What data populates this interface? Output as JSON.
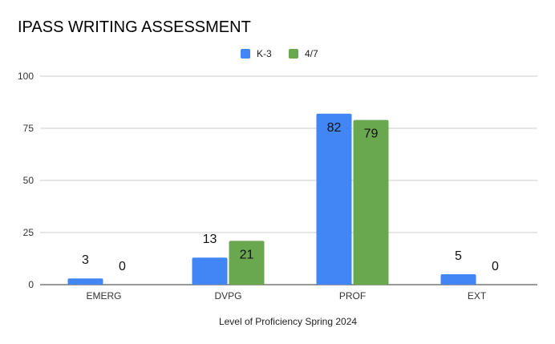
{
  "chart_data": {
    "type": "bar",
    "title": "IPASS WRITING ASSESSMENT",
    "xlabel": "Level of Proficiency Spring 2024",
    "ylabel": "",
    "ylim": [
      0,
      100
    ],
    "yticks": [
      0,
      25,
      50,
      75,
      100
    ],
    "categories": [
      "EMERG",
      "DVPG",
      "PROF",
      "EXT"
    ],
    "series": [
      {
        "name": "K-3",
        "color": "#4285f4",
        "values": [
          3,
          13,
          82,
          5
        ]
      },
      {
        "name": "4/7",
        "color": "#6aa84f",
        "values": [
          0,
          21,
          79,
          0
        ]
      }
    ],
    "grid": true,
    "legend_position": "top-center"
  }
}
